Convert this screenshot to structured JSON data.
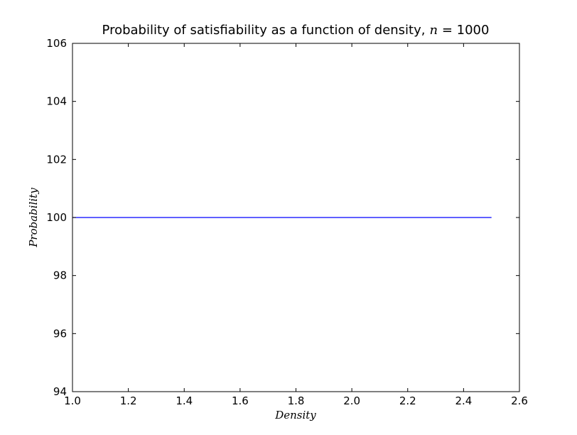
{
  "chart_data": {
    "type": "line",
    "title": "Probability of satisfiability as a function of density,",
    "title_variable": "n",
    "title_suffix": " = 1000",
    "xlabel": "Density",
    "ylabel": "Probability",
    "xlim": [
      1.0,
      2.6
    ],
    "ylim": [
      94,
      106
    ],
    "x_ticks": [
      "1.0",
      "1.2",
      "1.4",
      "1.6",
      "1.8",
      "2.0",
      "2.2",
      "2.4",
      "2.6"
    ],
    "y_ticks": [
      "94",
      "96",
      "98",
      "100",
      "102",
      "104",
      "106"
    ],
    "grid": false,
    "series": [
      {
        "x": [
          1.0,
          2.5
        ],
        "y": [
          100,
          100
        ],
        "color": "#0000ff"
      }
    ]
  }
}
